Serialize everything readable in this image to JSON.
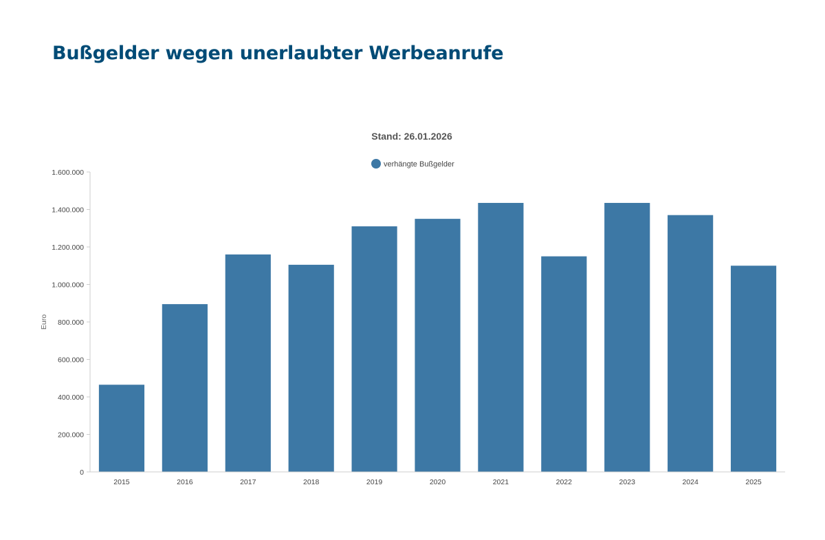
{
  "page": {
    "title": "Bußgelder wegen unerlaubter Werbeanrufe"
  },
  "colors": {
    "title": "#004b76",
    "bar": "#3d78a5",
    "axis": "#cccccc"
  },
  "chart_data": {
    "type": "bar",
    "subtitle": "Stand: 26.01.2026",
    "ylabel": "Euro",
    "xlabel": "",
    "ylim": [
      0,
      1600000
    ],
    "yticks": [
      0,
      200000,
      400000,
      600000,
      800000,
      1000000,
      1200000,
      1400000,
      1600000
    ],
    "ytick_labels": [
      "0",
      "200.000",
      "400.000",
      "600.000",
      "800.000",
      "1.000.000",
      "1.200.000",
      "1.400.000",
      "1.600.000"
    ],
    "grid": false,
    "legend_position": "top-center",
    "categories": [
      "2015",
      "2016",
      "2017",
      "2018",
      "2019",
      "2020",
      "2021",
      "2022",
      "2023",
      "2024",
      "2025"
    ],
    "series": [
      {
        "name": "verhängte Bußgelder",
        "color": "#3d78a5",
        "values": [
          465000,
          895000,
          1160000,
          1105000,
          1310000,
          1350000,
          1435000,
          1150000,
          1435000,
          1370000,
          1100000
        ]
      }
    ]
  }
}
